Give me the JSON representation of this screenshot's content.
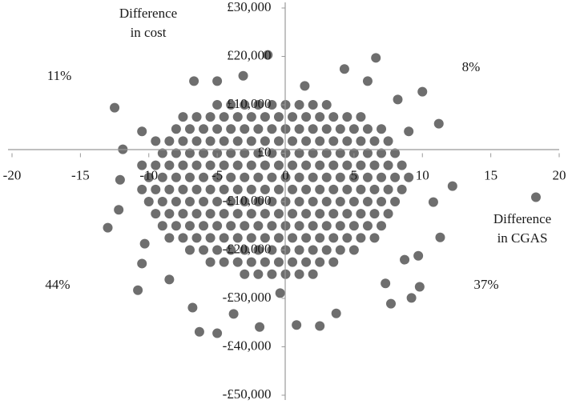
{
  "chart_data": {
    "type": "scatter",
    "x_label": [
      "Difference",
      "in CGAS"
    ],
    "y_label": [
      "Difference",
      "in cost"
    ],
    "quadrant_labels": {
      "top_left": "11%",
      "top_right": "8%",
      "bottom_left": "44%",
      "bottom_right": "37%"
    },
    "color": "#6e6e6e",
    "xlim": [
      -20,
      20
    ],
    "xticks": [
      -20,
      -15,
      -10,
      -5,
      0,
      5,
      10,
      15,
      20
    ],
    "ylim": [
      -50000,
      30000
    ],
    "yticks": [
      {
        "value": -50000,
        "label": "-£50,000"
      },
      {
        "value": -40000,
        "label": "-£40,000"
      },
      {
        "value": -30000,
        "label": "-£30,000"
      },
      {
        "value": -20000,
        "label": "-£20,000"
      },
      {
        "value": -10000,
        "label": "-£10,000"
      },
      {
        "value": 0,
        "label": "£0"
      },
      {
        "value": 10000,
        "label": "£10,000"
      },
      {
        "value": 20000,
        "label": "£20,000"
      },
      {
        "value": 30000,
        "label": "£30,000"
      }
    ],
    "points": [
      [
        -5,
        10000
      ],
      [
        -4,
        10000
      ],
      [
        -3,
        10000
      ],
      [
        -2,
        10000
      ],
      [
        -1,
        10000
      ],
      [
        0,
        10000
      ],
      [
        1,
        10000
      ],
      [
        2,
        10000
      ],
      [
        3,
        10000
      ],
      [
        -7.5,
        7500
      ],
      [
        -6.5,
        7500
      ],
      [
        -5.5,
        7500
      ],
      [
        -4.5,
        7500
      ],
      [
        -3.5,
        7500
      ],
      [
        -2.5,
        7500
      ],
      [
        -1.5,
        7500
      ],
      [
        -0.5,
        7500
      ],
      [
        0.5,
        7500
      ],
      [
        1.5,
        7500
      ],
      [
        2.5,
        7500
      ],
      [
        3.5,
        7500
      ],
      [
        4.5,
        7500
      ],
      [
        5.5,
        7500
      ],
      [
        -8,
        5000
      ],
      [
        -7,
        5000
      ],
      [
        -6,
        5000
      ],
      [
        -5,
        5000
      ],
      [
        -4,
        5000
      ],
      [
        -3,
        5000
      ],
      [
        -2,
        5000
      ],
      [
        -1,
        5000
      ],
      [
        0,
        5000
      ],
      [
        1,
        5000
      ],
      [
        2,
        5000
      ],
      [
        3,
        5000
      ],
      [
        4,
        5000
      ],
      [
        5,
        5000
      ],
      [
        6,
        5000
      ],
      [
        7,
        5000
      ],
      [
        -9.5,
        2500
      ],
      [
        -8.5,
        2500
      ],
      [
        -7.5,
        2500
      ],
      [
        -6.5,
        2500
      ],
      [
        -5.5,
        2500
      ],
      [
        -4.5,
        2500
      ],
      [
        -3.5,
        2500
      ],
      [
        -2.5,
        2500
      ],
      [
        -1.5,
        2500
      ],
      [
        -0.5,
        2500
      ],
      [
        0.5,
        2500
      ],
      [
        1.5,
        2500
      ],
      [
        2.5,
        2500
      ],
      [
        3.5,
        2500
      ],
      [
        4.5,
        2500
      ],
      [
        5.5,
        2500
      ],
      [
        6.5,
        2500
      ],
      [
        7.5,
        2500
      ],
      [
        -9,
        0
      ],
      [
        -8,
        0
      ],
      [
        -7,
        0
      ],
      [
        -6,
        0
      ],
      [
        -5,
        0
      ],
      [
        -4,
        0
      ],
      [
        -3,
        0
      ],
      [
        -2,
        0
      ],
      [
        -1,
        0
      ],
      [
        0,
        0
      ],
      [
        1,
        0
      ],
      [
        2,
        0
      ],
      [
        3,
        0
      ],
      [
        4,
        0
      ],
      [
        5,
        0
      ],
      [
        6,
        0
      ],
      [
        7,
        0
      ],
      [
        8,
        0
      ],
      [
        -10.5,
        -2500
      ],
      [
        -9.5,
        -2500
      ],
      [
        -8.5,
        -2500
      ],
      [
        -7.5,
        -2500
      ],
      [
        -6.5,
        -2500
      ],
      [
        -5.5,
        -2500
      ],
      [
        -4.5,
        -2500
      ],
      [
        -3.5,
        -2500
      ],
      [
        -2.5,
        -2500
      ],
      [
        -1.5,
        -2500
      ],
      [
        -0.5,
        -2500
      ],
      [
        0.5,
        -2500
      ],
      [
        1.5,
        -2500
      ],
      [
        2.5,
        -2500
      ],
      [
        3.5,
        -2500
      ],
      [
        4.5,
        -2500
      ],
      [
        5.5,
        -2500
      ],
      [
        6.5,
        -2500
      ],
      [
        7.5,
        -2500
      ],
      [
        8.5,
        -2500
      ],
      [
        -10,
        -5000
      ],
      [
        -9,
        -5000
      ],
      [
        -8,
        -5000
      ],
      [
        -7,
        -5000
      ],
      [
        -6,
        -5000
      ],
      [
        -5,
        -5000
      ],
      [
        -4,
        -5000
      ],
      [
        -3,
        -5000
      ],
      [
        -2,
        -5000
      ],
      [
        -1,
        -5000
      ],
      [
        0,
        -5000
      ],
      [
        1,
        -5000
      ],
      [
        2,
        -5000
      ],
      [
        3,
        -5000
      ],
      [
        4,
        -5000
      ],
      [
        5,
        -5000
      ],
      [
        6,
        -5000
      ],
      [
        7,
        -5000
      ],
      [
        8,
        -5000
      ],
      [
        9,
        -5000
      ],
      [
        -10.5,
        -7500
      ],
      [
        -9.5,
        -7500
      ],
      [
        -8.5,
        -7500
      ],
      [
        -7.5,
        -7500
      ],
      [
        -6.5,
        -7500
      ],
      [
        -5.5,
        -7500
      ],
      [
        -4.5,
        -7500
      ],
      [
        -3.5,
        -7500
      ],
      [
        -2.5,
        -7500
      ],
      [
        -1.5,
        -7500
      ],
      [
        -0.5,
        -7500
      ],
      [
        0.5,
        -7500
      ],
      [
        1.5,
        -7500
      ],
      [
        2.5,
        -7500
      ],
      [
        3.5,
        -7500
      ],
      [
        4.5,
        -7500
      ],
      [
        5.5,
        -7500
      ],
      [
        6.5,
        -7500
      ],
      [
        7.5,
        -7500
      ],
      [
        8.5,
        -7500
      ],
      [
        -10,
        -10000
      ],
      [
        -9,
        -10000
      ],
      [
        -8,
        -10000
      ],
      [
        -7,
        -10000
      ],
      [
        -6,
        -10000
      ],
      [
        -5,
        -10000
      ],
      [
        -4,
        -10000
      ],
      [
        -3,
        -10000
      ],
      [
        -2,
        -10000
      ],
      [
        -1,
        -10000
      ],
      [
        0,
        -10000
      ],
      [
        1,
        -10000
      ],
      [
        2,
        -10000
      ],
      [
        3,
        -10000
      ],
      [
        4,
        -10000
      ],
      [
        5,
        -10000
      ],
      [
        6,
        -10000
      ],
      [
        7,
        -10000
      ],
      [
        8,
        -10000
      ],
      [
        -9.5,
        -12500
      ],
      [
        -8.5,
        -12500
      ],
      [
        -7.5,
        -12500
      ],
      [
        -6.5,
        -12500
      ],
      [
        -5.5,
        -12500
      ],
      [
        -4.5,
        -12500
      ],
      [
        -3.5,
        -12500
      ],
      [
        -2.5,
        -12500
      ],
      [
        -1.5,
        -12500
      ],
      [
        -0.5,
        -12500
      ],
      [
        0.5,
        -12500
      ],
      [
        1.5,
        -12500
      ],
      [
        2.5,
        -12500
      ],
      [
        3.5,
        -12500
      ],
      [
        4.5,
        -12500
      ],
      [
        5.5,
        -12500
      ],
      [
        6.5,
        -12500
      ],
      [
        7.5,
        -12500
      ],
      [
        -9,
        -15000
      ],
      [
        -8,
        -15000
      ],
      [
        -7,
        -15000
      ],
      [
        -6,
        -15000
      ],
      [
        -5,
        -15000
      ],
      [
        -4,
        -15000
      ],
      [
        -3,
        -15000
      ],
      [
        -2,
        -15000
      ],
      [
        -1,
        -15000
      ],
      [
        0,
        -15000
      ],
      [
        1,
        -15000
      ],
      [
        2,
        -15000
      ],
      [
        3,
        -15000
      ],
      [
        4,
        -15000
      ],
      [
        5,
        -15000
      ],
      [
        6,
        -15000
      ],
      [
        7,
        -15000
      ],
      [
        -8.5,
        -17500
      ],
      [
        -7.5,
        -17500
      ],
      [
        -6.5,
        -17500
      ],
      [
        -5.5,
        -17500
      ],
      [
        -4.5,
        -17500
      ],
      [
        -3.5,
        -17500
      ],
      [
        -2.5,
        -17500
      ],
      [
        -1.5,
        -17500
      ],
      [
        -0.5,
        -17500
      ],
      [
        0.5,
        -17500
      ],
      [
        1.5,
        -17500
      ],
      [
        2.5,
        -17500
      ],
      [
        3.5,
        -17500
      ],
      [
        4.5,
        -17500
      ],
      [
        5.5,
        -17500
      ],
      [
        6.5,
        -17500
      ],
      [
        -7,
        -20000
      ],
      [
        -6,
        -20000
      ],
      [
        -5,
        -20000
      ],
      [
        -4,
        -20000
      ],
      [
        -3,
        -20000
      ],
      [
        -2,
        -20000
      ],
      [
        -1,
        -20000
      ],
      [
        0,
        -20000
      ],
      [
        1,
        -20000
      ],
      [
        2,
        -20000
      ],
      [
        3,
        -20000
      ],
      [
        4,
        -20000
      ],
      [
        5,
        -20000
      ],
      [
        -5.5,
        -22500
      ],
      [
        -4.5,
        -22500
      ],
      [
        -3.5,
        -22500
      ],
      [
        -2.5,
        -22500
      ],
      [
        -1.5,
        -22500
      ],
      [
        -0.5,
        -22500
      ],
      [
        0.5,
        -22500
      ],
      [
        1.5,
        -22500
      ],
      [
        2.5,
        -22500
      ],
      [
        3.5,
        -22500
      ],
      [
        -3,
        -25000
      ],
      [
        -2,
        -25000
      ],
      [
        -1,
        -25000
      ],
      [
        0,
        -25000
      ],
      [
        1,
        -25000
      ],
      [
        2,
        -25000
      ],
      [
        -12.5,
        9400
      ],
      [
        -1.3,
        20300
      ],
      [
        6.6,
        19700
      ],
      [
        18.3,
        -9100
      ],
      [
        10,
        12700
      ],
      [
        11.2,
        6100
      ],
      [
        -13,
        -15400
      ],
      [
        -10.8,
        -28300
      ],
      [
        -6.3,
        -36900
      ],
      [
        -5,
        -37200
      ],
      [
        -1.9,
        -35900
      ],
      [
        0.8,
        -35500
      ],
      [
        2.5,
        -35700
      ],
      [
        7.7,
        -31100
      ],
      [
        9.2,
        -29900
      ],
      [
        9.8,
        -27600
      ],
      [
        9.7,
        -21200
      ],
      [
        11.3,
        -17400
      ],
      [
        12.2,
        -6800
      ],
      [
        10.8,
        -10100
      ],
      [
        -10.5,
        4500
      ],
      [
        -10.3,
        -18700
      ],
      [
        4.3,
        17400
      ],
      [
        6,
        14900
      ],
      [
        -6.7,
        14900
      ],
      [
        -5,
        14900
      ],
      [
        -11.9,
        800
      ],
      [
        -12.1,
        -5500
      ],
      [
        -10.5,
        -22800
      ],
      [
        -6.8,
        -31900
      ],
      [
        -3.8,
        -33200
      ],
      [
        -0.4,
        -28900
      ],
      [
        3.7,
        -33100
      ],
      [
        7.3,
        -26900
      ],
      [
        8.7,
        -22000
      ],
      [
        -12.2,
        -11700
      ],
      [
        -8.5,
        -26100
      ],
      [
        9,
        4500
      ],
      [
        8.2,
        11100
      ],
      [
        -3.1,
        16000
      ],
      [
        1.4,
        13900
      ]
    ]
  }
}
